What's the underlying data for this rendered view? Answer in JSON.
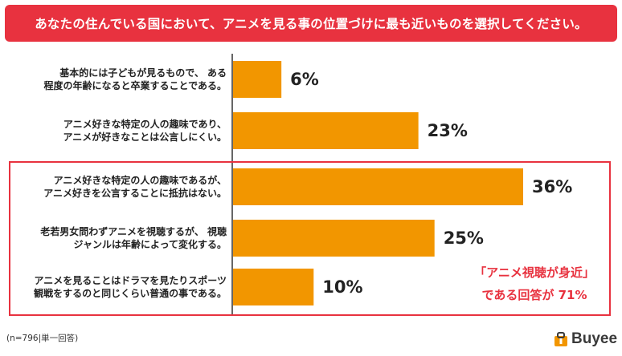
{
  "colors": {
    "title_bg": "#e8323f",
    "bar": "#f29600",
    "highlight": "#e8323f",
    "axis": "#333333",
    "logo_accent": "#f29600"
  },
  "title": "あなたの住んでいる国において、アニメを見る事の位置づけに最も近いものを選択してください。",
  "chart_data": {
    "type": "bar",
    "orientation": "horizontal",
    "title": "あなたの住んでいる国において、アニメを見る事の位置づけに最も近いものを選択してください。",
    "categories": [
      "基本的には子どもが見るもので、 ある\n程度の年齢になると卒業することである。",
      "アニメ好きな特定の人の趣味であり、\nアニメが好きなことは公言しにくい。",
      "アニメ好きな特定の人の趣味であるが、\nアニメ好きを公言することに抵抗はない。",
      "老若男女問わずアニメを視聴するが、 視聴\nジャンルは年齢によって変化する。",
      "アニメを見ることはドラマを見たりスポーツ\n観戦をするのと同じくらい普通の事である。"
    ],
    "values": [
      6,
      23,
      36,
      25,
      10
    ],
    "value_labels": [
      "6%",
      "23%",
      "36%",
      "25%",
      "10%"
    ],
    "unit": "%",
    "xlim": [
      0,
      36
    ],
    "grid": false,
    "highlighted_categories": [
      2,
      3,
      4
    ]
  },
  "callout": {
    "line1": "「アニメ視聴が身近」",
    "line2": "である回答が 71%"
  },
  "footnote": "(n=796|単一回答)",
  "logo": {
    "text": "Buyee",
    "icon": "buyee-bag-icon"
  }
}
